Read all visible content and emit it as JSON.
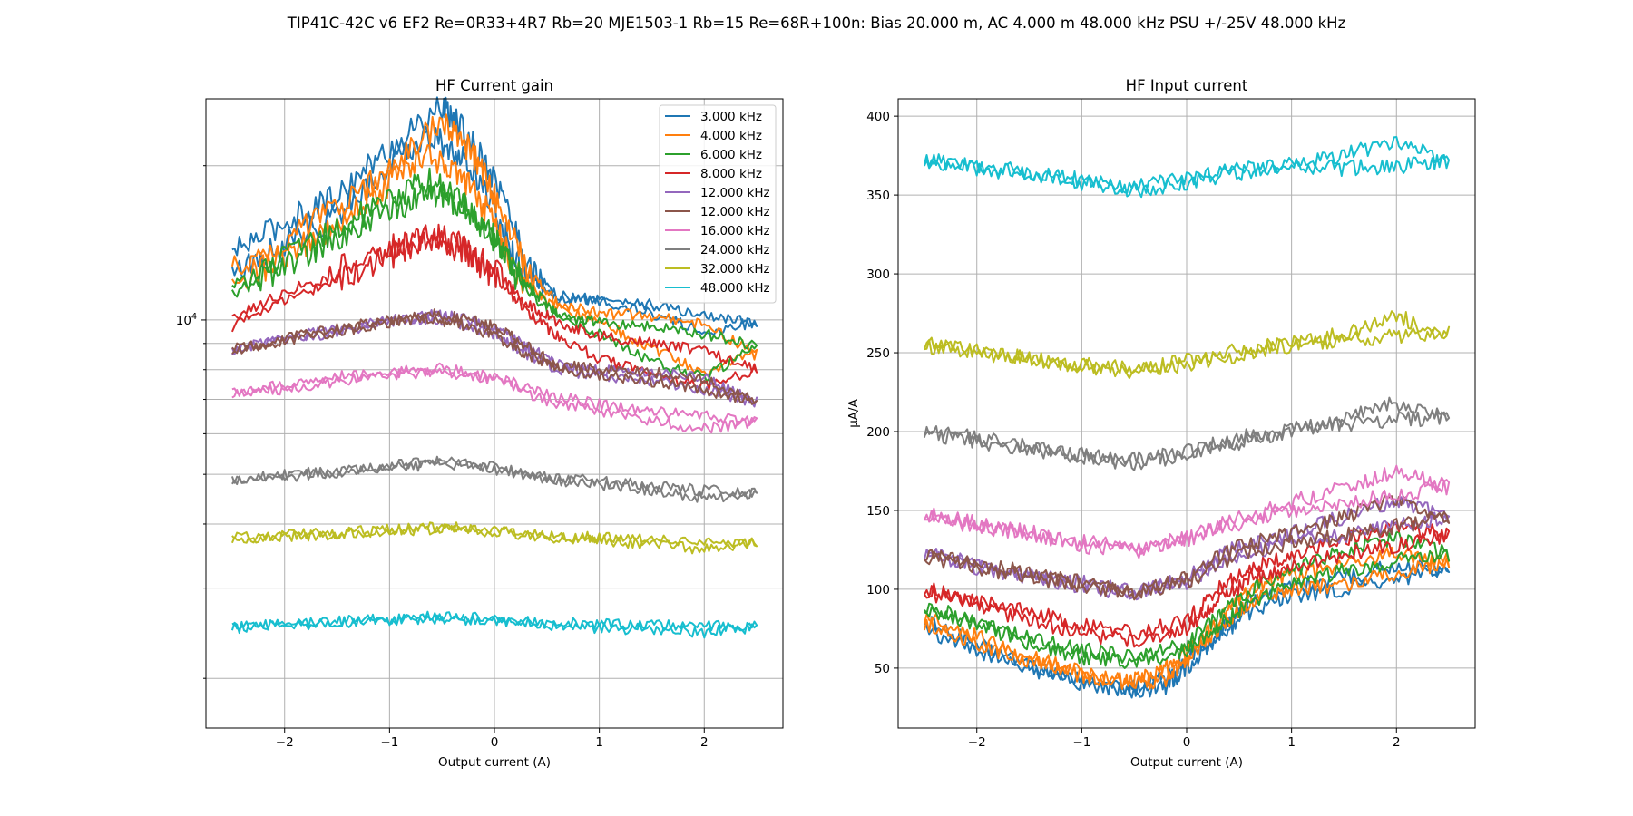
{
  "suptitle": "TIP41C-42C v6 EF2 Re=0R33+4R7 Rb=20 MJE1503-1 Rb=15 Re=68R+100n: Bias 20.000 m, AC 4.000 m 48.000 kHz PSU +/-25V 48.000 kHz",
  "colors": [
    "#1f77b4",
    "#ff7f0e",
    "#2ca02c",
    "#d62728",
    "#9467bd",
    "#8c564b",
    "#e377c2",
    "#7f7f7f",
    "#bcbd22",
    "#17becf"
  ],
  "chart_data": [
    {
      "type": "line",
      "title": "HF Current gain",
      "xlabel": "Output current (A)",
      "ylabel": "",
      "xlim": [
        -2.75,
        2.75
      ],
      "ylim": [
        1600,
        27000
      ],
      "yscale": "log",
      "xticks": [
        -2,
        -1,
        0,
        1,
        2
      ],
      "yticks_labeled": [
        {
          "value": 10000,
          "base": "10",
          "exp": "4"
        }
      ],
      "yticks_minor": [
        2000,
        3000,
        4000,
        5000,
        6000,
        7000,
        8000,
        9000,
        20000
      ],
      "grid": true,
      "legend": "top-right",
      "series": [
        {
          "name": "3.000 kHz",
          "x": [
            -2.5,
            -2.0,
            -1.5,
            -1.0,
            -0.5,
            -0.3,
            0.0,
            0.3,
            0.6,
            1.0,
            1.5,
            2.0,
            2.5,
            2.0,
            1.5,
            1.0,
            0.5,
            0.2,
            0.0,
            -0.3,
            -0.6,
            -1.0,
            -1.5,
            -2.0,
            -2.5
          ],
          "y": [
            13500,
            15500,
            17500,
            21500,
            26000,
            23500,
            19000,
            13000,
            10900,
            11000,
            10700,
            10200,
            9900,
            9500,
            10300,
            10900,
            11300,
            13000,
            16500,
            20500,
            23000,
            20000,
            16000,
            14000,
            12300
          ]
        },
        {
          "name": "4.000 kHz",
          "x": [
            -2.5,
            -2.0,
            -1.5,
            -1.0,
            -0.5,
            -0.2,
            0.0,
            0.3,
            0.6,
            1.0,
            1.5,
            2.0,
            2.5,
            2.0,
            1.5,
            1.0,
            0.5,
            0.2,
            0.0,
            -0.3,
            -0.6,
            -1.0,
            -1.5,
            -2.0,
            -2.5
          ],
          "y": [
            12500,
            14300,
            16500,
            19500,
            24500,
            21000,
            17500,
            12500,
            10800,
            10300,
            10200,
            9800,
            8600,
            7900,
            8800,
            9900,
            10800,
            12400,
            15500,
            19000,
            21000,
            18500,
            15500,
            13200,
            11800
          ]
        },
        {
          "name": "6.000 kHz",
          "x": [
            -2.5,
            -2.0,
            -1.5,
            -1.0,
            -0.6,
            -0.3,
            0.0,
            0.3,
            0.6,
            1.0,
            1.5,
            2.0,
            2.5,
            2.0,
            1.5,
            1.0,
            0.5,
            0.2,
            0.0,
            -0.3,
            -0.6,
            -1.0,
            -1.5,
            -2.0,
            -2.5
          ],
          "y": [
            11600,
            13200,
            15000,
            17200,
            18800,
            16800,
            14500,
            11800,
            10200,
            9900,
            9700,
            9400,
            8900,
            7700,
            8300,
            9400,
            10400,
            12200,
            14400,
            16800,
            17900,
            16200,
            14500,
            12800,
            11200
          ]
        },
        {
          "name": "8.000 kHz",
          "x": [
            -2.5,
            -2.0,
            -1.5,
            -1.0,
            -0.6,
            -0.3,
            0.0,
            0.3,
            0.6,
            1.0,
            1.5,
            2.0,
            2.5,
            2.0,
            1.5,
            1.0,
            0.6,
            0.3,
            0.0,
            -0.3,
            -0.6,
            -1.0,
            -1.5,
            -2.0,
            -2.5
          ],
          "y": [
            10100,
            11300,
            12600,
            13800,
            14700,
            13900,
            12500,
            10800,
            9900,
            9300,
            9000,
            8700,
            8000,
            7400,
            7800,
            8400,
            9300,
            10400,
            12200,
            13700,
            14200,
            13300,
            12000,
            10900,
            9700
          ]
        },
        {
          "name": "12.000 kHz",
          "x": [
            -2.5,
            -2.0,
            -1.5,
            -1.0,
            -0.6,
            -0.3,
            0.0,
            0.3,
            0.6,
            1.0,
            1.5,
            2.0,
            2.5,
            2.0,
            1.5,
            1.0,
            0.6,
            0.3,
            0.0,
            -0.3,
            -0.6,
            -1.0,
            -1.5,
            -2.0,
            -2.5
          ],
          "y": [
            8750,
            9200,
            9600,
            10000,
            10250,
            10100,
            9700,
            8900,
            8200,
            8000,
            7900,
            7700,
            6900,
            7300,
            7600,
            7800,
            8000,
            8600,
            9300,
            9800,
            10050,
            9900,
            9500,
            9100,
            8700
          ]
        },
        {
          "name": "12.000 kHz",
          "x": [
            -2.5,
            -2.0,
            -1.5,
            -1.0,
            -0.6,
            -0.3,
            0.0,
            0.3,
            0.6,
            1.0,
            1.5,
            2.0,
            2.5,
            2.0,
            1.5,
            1.0,
            0.6,
            0.3,
            0.0,
            -0.3,
            -0.6,
            -1.0,
            -1.5,
            -2.0,
            -2.5
          ],
          "y": [
            8750,
            9200,
            9600,
            10000,
            10250,
            10100,
            9700,
            8900,
            8200,
            8000,
            7900,
            7700,
            6900,
            7300,
            7600,
            7800,
            8000,
            8600,
            9300,
            9800,
            10050,
            9900,
            9500,
            9100,
            8700
          ]
        },
        {
          "name": "16.000 kHz",
          "x": [
            -2.5,
            -2.0,
            -1.5,
            -1.0,
            -0.5,
            0.0,
            0.5,
            1.0,
            1.5,
            2.0,
            2.5,
            2.0,
            1.5,
            1.0,
            0.5,
            0.0,
            -0.5,
            -1.0,
            -1.5,
            -2.0,
            -2.5
          ],
          "y": [
            7250,
            7450,
            7750,
            7900,
            8050,
            7750,
            7150,
            6850,
            6650,
            6500,
            6300,
            6150,
            6350,
            6650,
            6950,
            7650,
            7950,
            7800,
            7600,
            7350,
            7150
          ]
        },
        {
          "name": "24.000 kHz",
          "x": [
            -2.5,
            -2.0,
            -1.5,
            -1.0,
            -0.5,
            0.0,
            0.5,
            1.0,
            1.5,
            2.0,
            2.5,
            2.0,
            1.5,
            1.0,
            0.5,
            0.0,
            -0.5,
            -1.0,
            -1.5,
            -2.0,
            -2.5
          ],
          "y": [
            4900,
            5000,
            5100,
            5200,
            5300,
            5180,
            4950,
            4850,
            4750,
            4650,
            4600,
            4500,
            4650,
            4780,
            4900,
            5120,
            5250,
            5150,
            5050,
            4950,
            4850
          ]
        },
        {
          "name": "32.000 kHz",
          "x": [
            -2.5,
            -2.0,
            -1.5,
            -1.0,
            -0.5,
            0.0,
            0.5,
            1.0,
            1.5,
            2.0,
            2.5,
            2.0,
            1.5,
            1.0,
            0.5,
            0.0,
            -0.5,
            -1.0,
            -1.5,
            -2.0,
            -2.5
          ],
          "y": [
            3750,
            3800,
            3850,
            3900,
            3950,
            3900,
            3800,
            3760,
            3720,
            3700,
            3700,
            3560,
            3650,
            3720,
            3780,
            3870,
            3920,
            3880,
            3820,
            3780,
            3720
          ]
        },
        {
          "name": "48.000 kHz",
          "x": [
            -2.5,
            -2.0,
            -1.5,
            -1.0,
            -0.5,
            0.0,
            0.5,
            1.0,
            1.5,
            2.0,
            2.5,
            2.0,
            1.5,
            1.0,
            0.5,
            0.0,
            -0.5,
            -1.0,
            -1.5,
            -2.0,
            -2.5
          ],
          "y": [
            2520,
            2550,
            2580,
            2610,
            2640,
            2620,
            2580,
            2550,
            2540,
            2530,
            2520,
            2460,
            2490,
            2510,
            2540,
            2590,
            2620,
            2600,
            2570,
            2540,
            2510
          ]
        }
      ]
    },
    {
      "type": "line",
      "title": "HF Input current",
      "xlabel": "Output current (A)",
      "ylabel": "µA/A",
      "xlim": [
        -2.75,
        2.75
      ],
      "ylim": [
        12,
        411
      ],
      "yscale": "linear",
      "xticks": [
        -2,
        -1,
        0,
        1,
        2
      ],
      "yticks": [
        50,
        100,
        150,
        200,
        250,
        300,
        350,
        400
      ],
      "grid": true,
      "series": [
        {
          "x": [
            -2.5,
            -2.0,
            -1.5,
            -1.0,
            -0.5,
            -0.2,
            0.0,
            0.3,
            0.6,
            1.0,
            1.5,
            2.0,
            2.5,
            2.0,
            1.5,
            1.0,
            0.6,
            0.3,
            0.0,
            -0.3,
            -0.6,
            -1.0,
            -1.5,
            -2.0,
            -2.5
          ],
          "y": [
            80,
            65,
            52,
            42,
            35,
            38,
            50,
            70,
            85,
            96,
            100,
            105,
            112,
            116,
            107,
            102,
            93,
            72,
            55,
            42,
            37,
            40,
            50,
            60,
            75
          ]
        },
        {
          "x": [
            -2.5,
            -2.0,
            -1.5,
            -1.0,
            -0.5,
            -0.2,
            0.0,
            0.3,
            0.6,
            1.0,
            1.5,
            2.0,
            2.5,
            2.0,
            1.5,
            1.0,
            0.6,
            0.3,
            0.0,
            -0.3,
            -0.6,
            -1.0,
            -1.5,
            -2.0,
            -2.5
          ],
          "y": [
            83,
            70,
            57,
            47,
            40,
            43,
            55,
            75,
            92,
            100,
            103,
            110,
            118,
            123,
            115,
            108,
            100,
            80,
            60,
            46,
            42,
            45,
            55,
            65,
            79
          ]
        },
        {
          "x": [
            -2.5,
            -2.0,
            -1.5,
            -1.0,
            -0.5,
            0.0,
            0.3,
            0.6,
            1.0,
            1.5,
            2.0,
            2.5,
            2.0,
            1.5,
            1.0,
            0.6,
            0.3,
            0.0,
            -0.5,
            -1.0,
            -1.5,
            -2.0,
            -2.5
          ],
          "y": [
            90,
            78,
            66,
            57,
            53,
            62,
            76,
            92,
            104,
            112,
            118,
            122,
            133,
            124,
            112,
            100,
            83,
            66,
            57,
            62,
            70,
            78,
            86
          ]
        },
        {
          "x": [
            -2.5,
            -2.0,
            -1.5,
            -1.0,
            -0.5,
            0.0,
            0.3,
            0.6,
            1.0,
            1.5,
            2.0,
            2.5,
            2.0,
            1.5,
            1.0,
            0.6,
            0.3,
            0.0,
            -0.5,
            -1.0,
            -1.5,
            -2.0,
            -2.5
          ],
          "y": [
            101,
            91,
            80,
            72,
            67,
            76,
            93,
            106,
            114,
            122,
            128,
            134,
            141,
            132,
            122,
            114,
            100,
            80,
            72,
            78,
            86,
            92,
            98
          ]
        },
        {
          "x": [
            -2.5,
            -2.0,
            -1.5,
            -1.0,
            -0.5,
            0.0,
            0.5,
            1.0,
            1.5,
            2.0,
            2.5,
            2.0,
            1.5,
            1.0,
            0.5,
            0.0,
            -0.5,
            -1.0,
            -1.5,
            -2.0,
            -2.5
          ],
          "y": [
            123,
            116,
            110,
            104,
            98,
            105,
            122,
            130,
            134,
            140,
            145,
            157,
            146,
            135,
            128,
            108,
            97,
            102,
            108,
            114,
            121
          ]
        },
        {
          "x": [
            -2.5,
            -2.0,
            -1.5,
            -1.0,
            -0.5,
            0.0,
            0.5,
            1.0,
            1.5,
            2.0,
            2.5,
            2.0,
            1.5,
            1.0,
            0.5,
            0.0,
            -0.5,
            -1.0,
            -1.5,
            -2.0,
            -2.5
          ],
          "y": [
            123,
            116,
            110,
            104,
            98,
            105,
            122,
            130,
            134,
            140,
            145,
            157,
            146,
            135,
            128,
            108,
            97,
            102,
            108,
            114,
            121
          ]
        },
        {
          "x": [
            -2.5,
            -2.0,
            -1.5,
            -1.0,
            -0.5,
            0.0,
            0.5,
            1.0,
            1.5,
            2.0,
            2.5,
            2.0,
            1.5,
            1.0,
            0.5,
            0.0,
            -0.5,
            -1.0,
            -1.5,
            -2.0,
            -2.5
          ],
          "y": [
            148,
            142,
            136,
            130,
            126,
            132,
            142,
            150,
            155,
            160,
            165,
            175,
            165,
            155,
            145,
            133,
            124,
            128,
            135,
            140,
            146
          ]
        },
        {
          "x": [
            -2.5,
            -2.0,
            -1.5,
            -1.0,
            -0.5,
            0.0,
            0.5,
            1.0,
            1.5,
            2.0,
            2.5,
            2.0,
            1.5,
            1.0,
            0.5,
            0.0,
            -0.5,
            -1.0,
            -1.5,
            -2.0,
            -2.5
          ],
          "y": [
            200,
            196,
            190,
            185,
            182,
            187,
            196,
            202,
            205,
            207,
            210,
            218,
            208,
            200,
            193,
            185,
            180,
            184,
            189,
            194,
            199
          ]
        },
        {
          "x": [
            -2.5,
            -2.0,
            -1.5,
            -1.0,
            -0.5,
            0.0,
            0.5,
            1.0,
            1.5,
            2.0,
            2.5,
            2.0,
            1.5,
            1.0,
            0.5,
            0.0,
            -0.5,
            -1.0,
            -1.5,
            -2.0,
            -2.5
          ],
          "y": [
            256,
            251,
            246,
            242,
            240,
            245,
            252,
            256,
            258,
            260,
            262,
            273,
            262,
            255,
            249,
            243,
            238,
            242,
            246,
            250,
            254
          ]
        },
        {
          "x": [
            -2.5,
            -2.0,
            -1.5,
            -1.0,
            -0.5,
            0.0,
            0.5,
            1.0,
            1.5,
            2.0,
            2.5,
            2.0,
            1.5,
            1.0,
            0.5,
            0.0,
            -0.5,
            -1.0,
            -1.5,
            -2.0,
            -2.5
          ],
          "y": [
            372,
            369,
            364,
            360,
            355,
            360,
            366,
            369,
            367,
            368,
            372,
            383,
            376,
            369,
            364,
            358,
            353,
            358,
            363,
            367,
            371
          ]
        }
      ]
    }
  ]
}
